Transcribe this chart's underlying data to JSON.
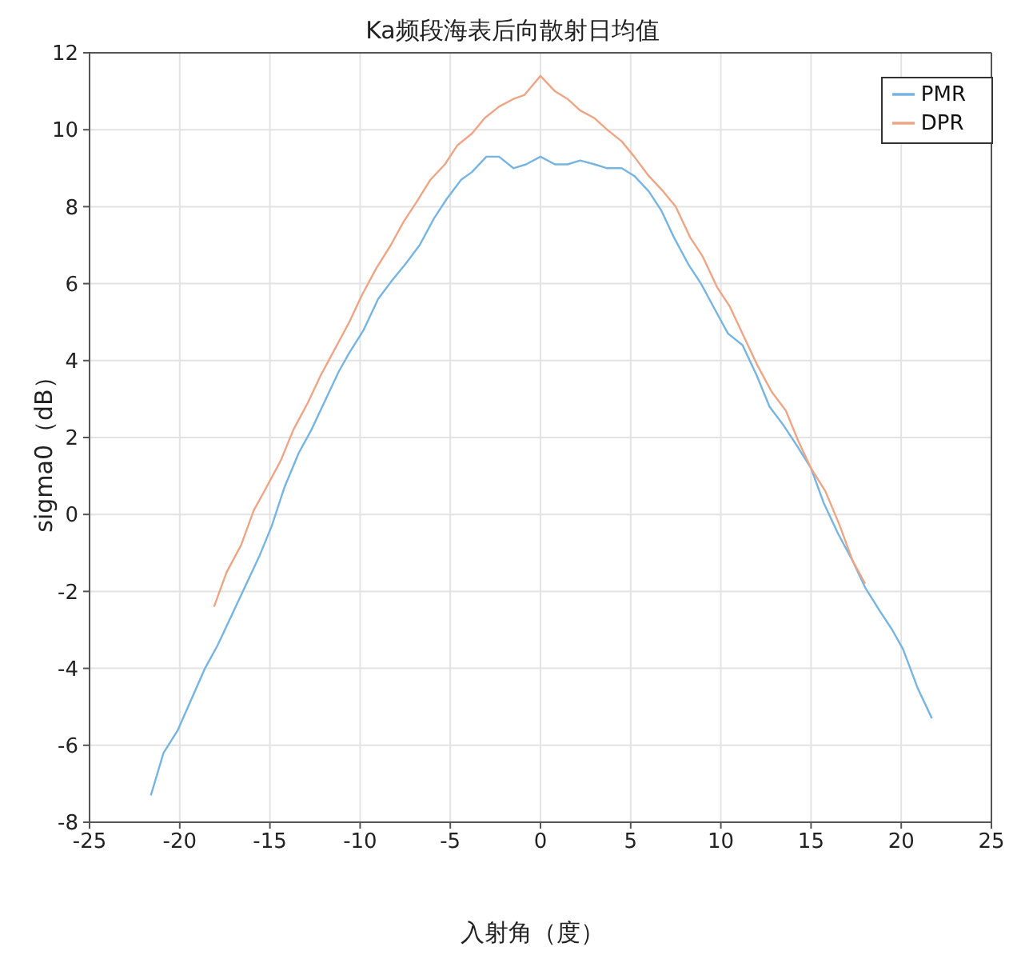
{
  "chart_data": {
    "type": "line",
    "title": "Ka频段海表后向散射日均值",
    "xlabel": "入射角（度）",
    "ylabel": "sigma0（dB）",
    "xlim": [
      -25,
      25
    ],
    "xticks": [
      -25,
      -20,
      -15,
      -10,
      -5,
      0,
      5,
      10,
      15,
      20,
      25
    ],
    "ylim": [
      -8,
      12
    ],
    "yticks": [
      -8,
      -6,
      -4,
      -2,
      0,
      2,
      4,
      6,
      8,
      10,
      12
    ],
    "grid": true,
    "legend": "top right",
    "marker": "none",
    "line_style": "solid",
    "series": [
      {
        "name": "PMR",
        "color": "#76b5e2",
        "x": [
          -21.6,
          -20.9,
          -20.1,
          -18.6,
          -17.9,
          -16.4,
          -15.6,
          -14.9,
          -14.2,
          -13.4,
          -12.7,
          -11.9,
          -11.2,
          -10.6,
          -9.8,
          -9.0,
          -8.2,
          -7.5,
          -6.7,
          -5.9,
          -5.2,
          -4.4,
          -3.8,
          -3.0,
          -2.3,
          -1.5,
          -0.8,
          0.0,
          0.8,
          1.5,
          2.2,
          3.0,
          3.7,
          4.5,
          5.2,
          6.0,
          6.7,
          7.4,
          8.2,
          8.9,
          9.7,
          10.4,
          11.2,
          12.0,
          12.7,
          13.5,
          14.2,
          15.0,
          15.7,
          16.5,
          17.3,
          18.0,
          18.8,
          19.5,
          20.1,
          20.9,
          21.7
        ],
        "values": [
          -7.3,
          -6.2,
          -5.6,
          -4.0,
          -3.4,
          -1.9,
          -1.1,
          -0.3,
          0.7,
          1.6,
          2.2,
          3.0,
          3.7,
          4.2,
          4.8,
          5.6,
          6.1,
          6.5,
          7.0,
          7.7,
          8.2,
          8.7,
          8.9,
          9.3,
          9.3,
          9.0,
          9.1,
          9.3,
          9.1,
          9.1,
          9.2,
          9.1,
          9.0,
          9.0,
          8.8,
          8.4,
          7.9,
          7.2,
          6.5,
          6.0,
          5.3,
          4.7,
          4.4,
          3.6,
          2.8,
          2.3,
          1.8,
          1.2,
          0.3,
          -0.5,
          -1.2,
          -1.9,
          -2.5,
          -3.0,
          -3.5,
          -4.5,
          -5.3
        ]
      },
      {
        "name": "DPR",
        "color": "#eea586",
        "x": [
          -18.1,
          -17.4,
          -16.6,
          -15.9,
          -15.2,
          -14.4,
          -13.7,
          -12.9,
          -12.2,
          -11.4,
          -10.6,
          -9.9,
          -9.1,
          -8.3,
          -7.6,
          -6.9,
          -6.1,
          -5.3,
          -4.6,
          -3.8,
          -3.1,
          -2.3,
          -1.5,
          -0.9,
          0.0,
          0.8,
          1.5,
          2.2,
          3.0,
          3.7,
          4.5,
          5.2,
          6.0,
          6.8,
          7.5,
          8.3,
          9.0,
          9.8,
          10.5,
          11.3,
          12.0,
          12.8,
          13.6,
          14.3,
          15.0,
          15.8,
          16.6,
          17.3,
          18.0
        ],
        "values": [
          -2.4,
          -1.5,
          -0.8,
          0.1,
          0.7,
          1.4,
          2.2,
          2.9,
          3.6,
          4.3,
          5.0,
          5.7,
          6.4,
          7.0,
          7.6,
          8.1,
          8.7,
          9.1,
          9.6,
          9.9,
          10.3,
          10.6,
          10.8,
          10.9,
          11.4,
          11.0,
          10.8,
          10.5,
          10.3,
          10.0,
          9.7,
          9.3,
          8.8,
          8.4,
          8.0,
          7.2,
          6.7,
          5.9,
          5.4,
          4.6,
          3.9,
          3.2,
          2.7,
          1.9,
          1.2,
          0.6,
          -0.3,
          -1.2,
          -1.8
        ]
      }
    ]
  }
}
